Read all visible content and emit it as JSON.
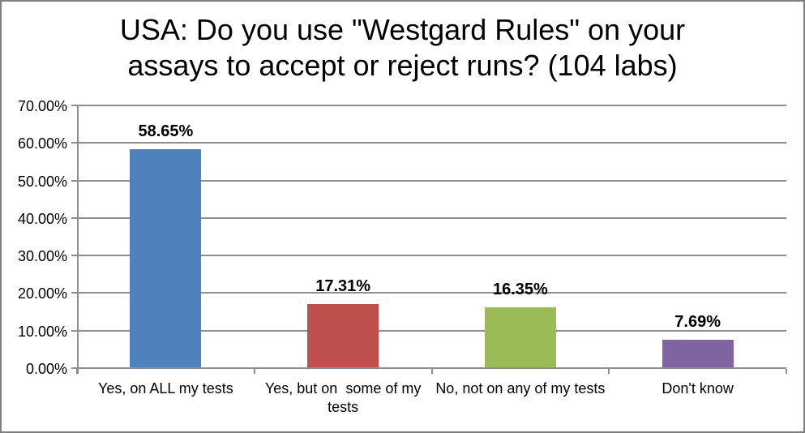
{
  "frame": {
    "border_color": "#7f7f7f",
    "background": "#ffffff"
  },
  "chart_data": {
    "type": "bar",
    "title": "USA: Do you use \"Westgard Rules\" on your assays to accept or reject runs? (104 labs)",
    "title_line1": "USA: Do you use \"Westgard Rules\" on your",
    "title_line2": "assays to accept or reject runs? (104 labs)",
    "categories": [
      "Yes, on ALL my tests",
      "Yes, but on  some of my tests",
      "No, not on any of my tests",
      "Don't know"
    ],
    "values": [
      58.65,
      17.31,
      16.35,
      7.69
    ],
    "data_labels": [
      "58.65%",
      "17.31%",
      "16.35%",
      "7.69%"
    ],
    "bar_colors": [
      "#4F81BD",
      "#C0504D",
      "#9BBB59",
      "#8064A2"
    ],
    "xlabel": "",
    "ylabel": "",
    "ylim": [
      0,
      70
    ],
    "ytick_step": 10,
    "ytick_labels": [
      "0.00%",
      "10.00%",
      "20.00%",
      "30.00%",
      "40.00%",
      "50.00%",
      "60.00%",
      "70.00%"
    ],
    "grid": true,
    "gridline_color": "#8e8e8e",
    "axis_color": "#8e8e8e",
    "text_color": "#000000",
    "legend_position": "none"
  }
}
